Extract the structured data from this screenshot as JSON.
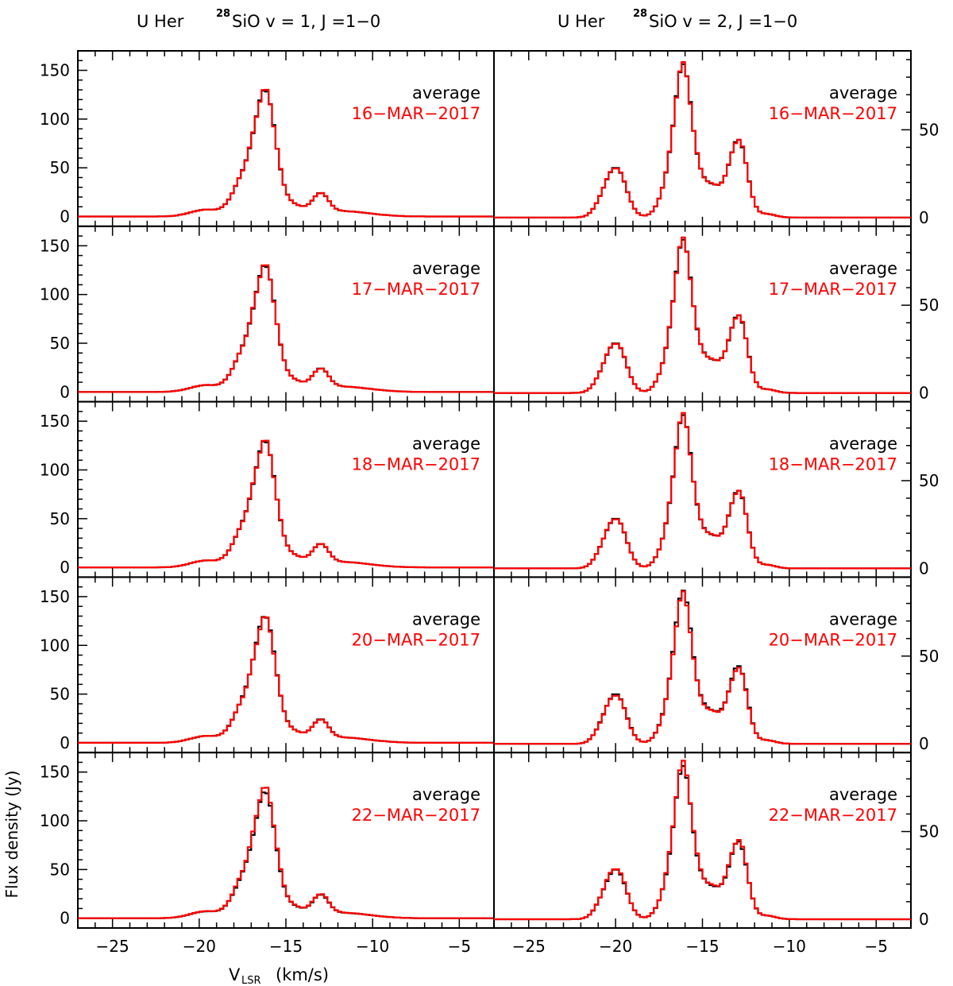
{
  "columns": [
    {
      "title_prefix": "U Her",
      "isotope_mass": "28",
      "title_molecule": "SiO v = 1, J =1−0"
    },
    {
      "title_prefix": "U Her",
      "isotope_mass": "28",
      "title_molecule": "SiO v = 2, J =1−0"
    }
  ],
  "colors": {
    "average": "#000000",
    "daily": "#ff0000"
  },
  "chart_data": {
    "type": "line",
    "style": "step histogram spectra, 5x2 panel grid",
    "xlabel_main": "V",
    "xlabel_sub": "LSR",
    "xlabel_unit": "(km/s)",
    "ylabel": "Flux density (Jy)",
    "xlim": [
      -27,
      -3
    ],
    "x_ticks": [
      -25,
      -20,
      -15,
      -10,
      -5
    ],
    "x_tick_labels": [
      "−25",
      "−20",
      "−15",
      "−10",
      "−5"
    ],
    "left_ylim": [
      -10,
      170
    ],
    "left_y_ticks": [
      0,
      50,
      100,
      150
    ],
    "left_y_tick_labels": [
      "0",
      "50",
      "100",
      "150"
    ],
    "right_ylim": [
      -5,
      95
    ],
    "right_y_ticks": [
      0,
      50
    ],
    "right_y_tick_labels": [
      "0",
      "50"
    ],
    "channel_width_kms": 0.2,
    "average_label": "average",
    "dates": [
      "16−MAR−2017",
      "17−MAR−2017",
      "18−MAR−2017",
      "20−MAR−2017",
      "22−MAR−2017"
    ],
    "v1_components": [
      {
        "center": -16.1,
        "width": 0.55,
        "amp": 100
      },
      {
        "center": -16.9,
        "width": 0.75,
        "amp": 48
      },
      {
        "center": -17.8,
        "width": 0.55,
        "amp": 10
      },
      {
        "center": -13.0,
        "width": 0.45,
        "amp": 20
      },
      {
        "center": -14.2,
        "width": 0.5,
        "amp": 6
      },
      {
        "center": -19.6,
        "width": 0.9,
        "amp": 7
      },
      {
        "center": -11.8,
        "width": 1.6,
        "amp": 5.5
      },
      {
        "center": -15.0,
        "width": 0.5,
        "amp": 9
      }
    ],
    "v2_components": [
      {
        "center": -19.9,
        "width": 0.55,
        "amp": 26
      },
      {
        "center": -20.7,
        "width": 0.5,
        "amp": 8
      },
      {
        "center": -16.1,
        "width": 0.45,
        "amp": 64
      },
      {
        "center": -16.7,
        "width": 0.6,
        "amp": 25
      },
      {
        "center": -15.4,
        "width": 0.55,
        "amp": 18
      },
      {
        "center": -13.0,
        "width": 0.5,
        "amp": 38
      },
      {
        "center": -14.3,
        "width": 0.6,
        "amp": 15
      },
      {
        "center": -12.6,
        "width": 0.4,
        "amp": 8
      },
      {
        "center": -11.3,
        "width": 0.5,
        "amp": 2
      }
    ],
    "daily_scale": [
      {
        "v1": 1.0,
        "v2": 1.0
      },
      {
        "v1": 1.0,
        "v2": 1.0
      },
      {
        "v1": 1.0,
        "v2": 1.0
      },
      {
        "v1": 0.99,
        "v2": 0.98
      },
      {
        "v1": 1.03,
        "v2": 1.02
      }
    ]
  }
}
